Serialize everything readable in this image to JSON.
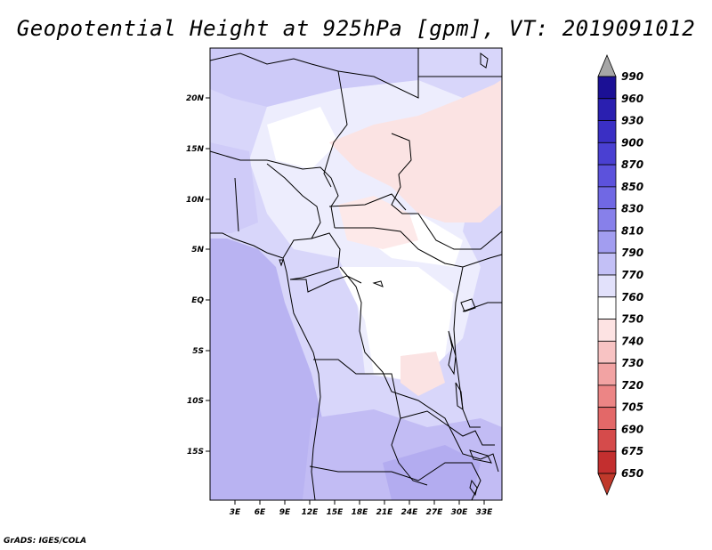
{
  "title": "Geopotential Height at 925hPa [gpm], VT: 2019091012",
  "credit": "GrADS: IGES/COLA",
  "map": {
    "lat_labels": [
      "20N",
      "15N",
      "10N",
      "5N",
      "EQ",
      "5S",
      "10S",
      "15S"
    ],
    "lon_labels": [
      "3E",
      "6E",
      "9E",
      "12E",
      "15E",
      "18E",
      "21E",
      "24E",
      "27E",
      "30E",
      "33E"
    ]
  },
  "colorbar": {
    "levels": [
      "990",
      "960",
      "930",
      "900",
      "870",
      "850",
      "830",
      "810",
      "790",
      "770",
      "760",
      "750",
      "740",
      "730",
      "720",
      "705",
      "690",
      "675",
      "650"
    ],
    "colors": {
      "top_arrow": "#a6a6a6",
      "bottom_arrow": "#c0392b",
      "high": "#1a0f8f",
      "neutral": "#ffffff",
      "low": "#b01a1a"
    }
  },
  "colors": {
    "ocean": "#b8b2f0",
    "land_mid": "#d8d6fa",
    "land_light": "#e8e8fc",
    "warm": "#fbdcdc",
    "south_high": "#c0baf2"
  }
}
